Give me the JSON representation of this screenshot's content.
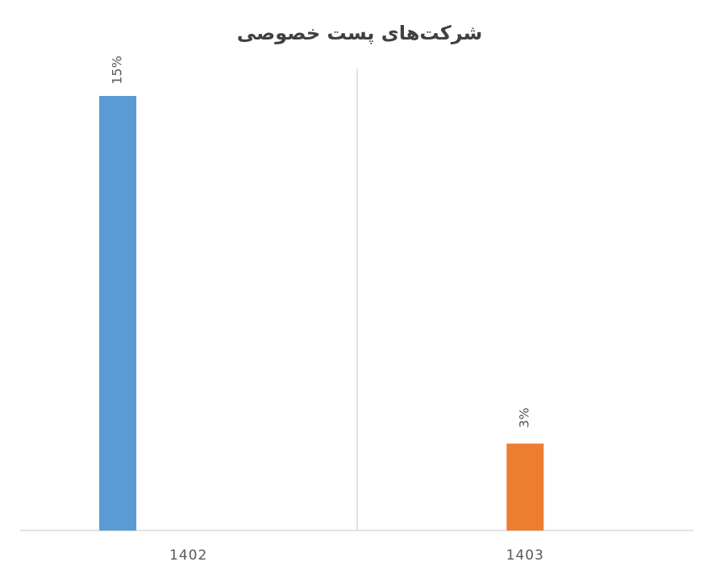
{
  "chart_data": {
    "type": "bar",
    "title": "شرکت‌های پست خصوصی",
    "categories": [
      "1402",
      "1403"
    ],
    "values": [
      15,
      3
    ],
    "value_labels": [
      "15%",
      "3%"
    ],
    "colors": [
      "#5b9bd5",
      "#ed7d31"
    ]
  }
}
